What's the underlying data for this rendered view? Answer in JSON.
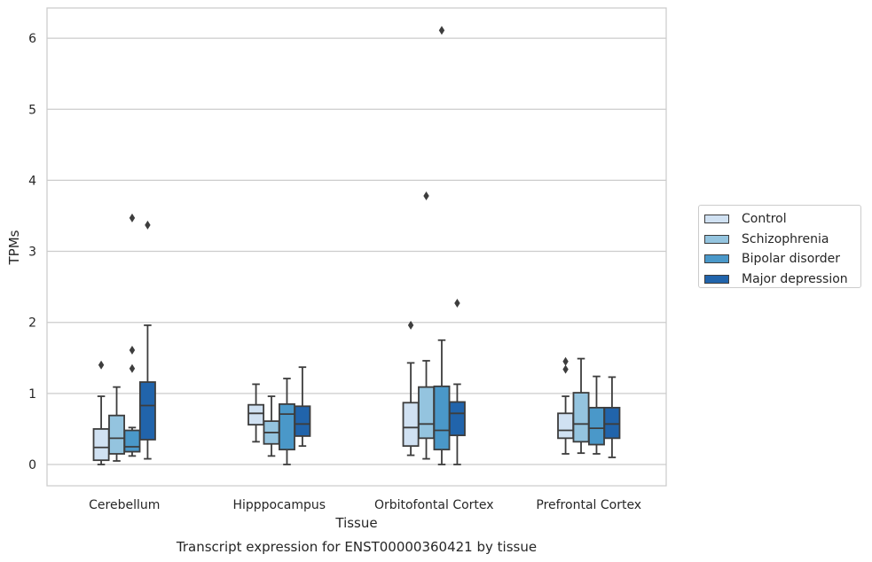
{
  "chart_data": {
    "type": "box",
    "title": "",
    "caption": "Transcript expression for ENST00000360421 by tissue",
    "xlabel": "Tissue",
    "ylabel": "TPMs",
    "ylim": [
      -0.3,
      6.42
    ],
    "yticks": [
      0,
      1,
      2,
      3,
      4,
      5,
      6
    ],
    "grid": "horizontal",
    "legend_position": "right",
    "categories": [
      "Cerebellum",
      "Hipppocampus",
      "Orbitofontal Cortex",
      "Prefrontal Cortex"
    ],
    "series": [
      {
        "name": "Control",
        "color": "#d0e1f2",
        "boxes": [
          {
            "whislo": 0.0,
            "q1": 0.06,
            "med": 0.24,
            "q3": 0.5,
            "whishi": 0.96,
            "fliers": [
              1.4
            ]
          },
          {
            "whislo": 0.32,
            "q1": 0.56,
            "med": 0.72,
            "q3": 0.84,
            "whishi": 1.13,
            "fliers": []
          },
          {
            "whislo": 0.13,
            "q1": 0.26,
            "med": 0.52,
            "q3": 0.87,
            "whishi": 1.43,
            "fliers": [
              1.96
            ]
          },
          {
            "whislo": 0.15,
            "q1": 0.37,
            "med": 0.48,
            "q3": 0.72,
            "whishi": 0.96,
            "fliers": [
              1.34,
              1.45
            ]
          }
        ]
      },
      {
        "name": "Schizophrenia",
        "color": "#94c4df",
        "boxes": [
          {
            "whislo": 0.05,
            "q1": 0.15,
            "med": 0.37,
            "q3": 0.69,
            "whishi": 1.09,
            "fliers": []
          },
          {
            "whislo": 0.12,
            "q1": 0.29,
            "med": 0.45,
            "q3": 0.61,
            "whishi": 0.96,
            "fliers": []
          },
          {
            "whislo": 0.08,
            "q1": 0.37,
            "med": 0.57,
            "q3": 1.09,
            "whishi": 1.46,
            "fliers": [
              3.78
            ]
          },
          {
            "whislo": 0.16,
            "q1": 0.32,
            "med": 0.57,
            "q3": 1.01,
            "whishi": 1.49,
            "fliers": []
          }
        ]
      },
      {
        "name": "Bipolar disorder",
        "color": "#4a98c9",
        "boxes": [
          {
            "whislo": 0.12,
            "q1": 0.18,
            "med": 0.25,
            "q3": 0.48,
            "whishi": 0.52,
            "fliers": [
              1.35,
              1.61,
              3.47
            ]
          },
          {
            "whislo": 0.0,
            "q1": 0.21,
            "med": 0.71,
            "q3": 0.85,
            "whishi": 1.21,
            "fliers": []
          },
          {
            "whislo": 0.0,
            "q1": 0.21,
            "med": 0.48,
            "q3": 1.1,
            "whishi": 1.75,
            "fliers": [
              6.11
            ]
          },
          {
            "whislo": 0.15,
            "q1": 0.28,
            "med": 0.51,
            "q3": 0.8,
            "whishi": 1.24,
            "fliers": []
          }
        ]
      },
      {
        "name": "Major depression",
        "color": "#2164ab",
        "boxes": [
          {
            "whislo": 0.08,
            "q1": 0.35,
            "med": 0.83,
            "q3": 1.16,
            "whishi": 1.96,
            "fliers": [
              3.37
            ]
          },
          {
            "whislo": 0.26,
            "q1": 0.4,
            "med": 0.57,
            "q3": 0.82,
            "whishi": 1.37,
            "fliers": []
          },
          {
            "whislo": 0.0,
            "q1": 0.41,
            "med": 0.72,
            "q3": 0.88,
            "whishi": 1.13,
            "fliers": [
              2.27
            ]
          },
          {
            "whislo": 0.1,
            "q1": 0.37,
            "med": 0.57,
            "q3": 0.8,
            "whishi": 1.23,
            "fliers": []
          }
        ]
      }
    ]
  }
}
